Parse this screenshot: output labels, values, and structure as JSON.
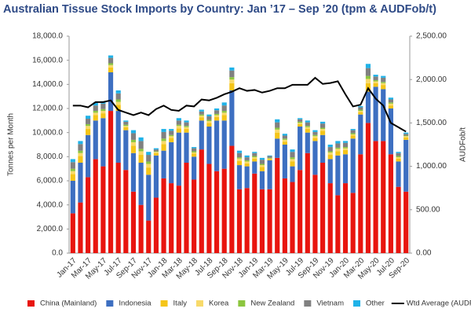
{
  "chart_data": {
    "type": "bar",
    "title": "Australian Tissue Stock Imports by Country: Jan ’17 – Sep ’20 (tpm & AUDFob/t)",
    "ylabel": "Tonnes per Month",
    "y2label": "AUDFob/t",
    "categories": [
      "Jan-17",
      null,
      "Mar-17",
      null,
      "May-17",
      null,
      "Jul-17",
      null,
      "Sep-17",
      null,
      "Nov-17",
      null,
      "Jan-18",
      null,
      "Mar-18",
      null,
      "May-18",
      null,
      "Jul-18",
      null,
      "Sep-18",
      null,
      "Nov-18",
      null,
      "Jan-19",
      null,
      "Mar-19",
      null,
      "May-19",
      null,
      "Jul-19",
      null,
      "Sep-19",
      null,
      "Nov-19",
      null,
      "Jan-20",
      null,
      "Mar-20",
      null,
      "May-20",
      null,
      "Jul-20",
      null,
      "Sep-20"
    ],
    "ylim": [
      0,
      18000
    ],
    "yticks": [
      {
        "value": 0,
        "label": "0.0"
      },
      {
        "value": 2000,
        "label": "2,000.0"
      },
      {
        "value": 4000,
        "label": "4,000.0"
      },
      {
        "value": 6000,
        "label": "6,000.0"
      },
      {
        "value": 8000,
        "label": "8,000.0"
      },
      {
        "value": 10000,
        "label": "10,000.0"
      },
      {
        "value": 12000,
        "label": "12,000.0"
      },
      {
        "value": 14000,
        "label": "14,000.0"
      },
      {
        "value": 16000,
        "label": "16,000.0"
      },
      {
        "value": 18000,
        "label": "18,000.0"
      }
    ],
    "y2lim": [
      0,
      2500
    ],
    "y2ticks": [
      {
        "value": 0,
        "label": "0.00"
      },
      {
        "value": 500,
        "label": "500.00"
      },
      {
        "value": 1000,
        "label": "1,000.00"
      },
      {
        "value": 1500,
        "label": "1,500.00"
      },
      {
        "value": 2000,
        "label": "2,000.00"
      },
      {
        "value": 2500,
        "label": "2,500.00"
      }
    ],
    "series": [
      {
        "name": "China (Mainland)",
        "color": "#e8150f",
        "values": [
          3300,
          4200,
          6300,
          7800,
          7200,
          11800,
          7500,
          6900,
          5100,
          4000,
          2700,
          4600,
          6200,
          5800,
          5600,
          7500,
          6100,
          8600,
          7400,
          6800,
          7000,
          8900,
          5300,
          5400,
          6600,
          5300,
          5300,
          7900,
          6200,
          5900,
          6900,
          8300,
          6500,
          7500,
          5800,
          4800,
          5800,
          5000,
          8200,
          10800,
          9300,
          9300,
          8200,
          5500,
          5100
        ]
      },
      {
        "name": "Indonesia",
        "color": "#3d6fc1",
        "values": [
          2700,
          3300,
          3500,
          3200,
          4000,
          3200,
          4300,
          3300,
          3200,
          3500,
          3800,
          3500,
          2300,
          3400,
          4400,
          2500,
          1900,
          2400,
          3100,
          4200,
          4000,
          4600,
          2000,
          1800,
          1000,
          1500,
          2400,
          1600,
          2800,
          1300,
          3600,
          1700,
          2800,
          2300,
          2000,
          3300,
          2400,
          4500,
          3300,
          2600,
          4500,
          4300,
          3800,
          2100,
          4300
        ]
      },
      {
        "name": "Italy",
        "color": "#f5c518",
        "values": [
          550,
          550,
          500,
          450,
          400,
          400,
          500,
          250,
          600,
          650,
          600,
          200,
          550,
          350,
          350,
          300,
          250,
          250,
          300,
          300,
          450,
          600,
          350,
          250,
          250,
          350,
          100,
          500,
          250,
          400,
          200,
          300,
          250,
          350,
          350,
          350,
          350,
          250,
          200,
          700,
          300,
          350,
          250,
          250,
          200
        ]
      },
      {
        "name": "Korea",
        "color": "#f8da6a",
        "values": [
          250,
          250,
          250,
          200,
          200,
          200,
          250,
          100,
          300,
          300,
          300,
          100,
          250,
          150,
          200,
          150,
          100,
          150,
          150,
          150,
          200,
          300,
          200,
          150,
          100,
          150,
          50,
          250,
          150,
          200,
          100,
          150,
          150,
          150,
          200,
          200,
          150,
          100,
          100,
          350,
          150,
          150,
          150,
          100,
          100
        ]
      },
      {
        "name": "New Zealand",
        "color": "#8cc63f",
        "values": [
          200,
          200,
          150,
          150,
          150,
          150,
          200,
          100,
          200,
          200,
          200,
          50,
          200,
          100,
          100,
          100,
          100,
          100,
          100,
          100,
          150,
          200,
          100,
          100,
          100,
          100,
          50,
          150,
          100,
          150,
          100,
          100,
          100,
          100,
          100,
          100,
          100,
          100,
          100,
          250,
          100,
          100,
          100,
          100,
          50
        ]
      },
      {
        "name": "Vietnam",
        "color": "#808080",
        "values": [
          550,
          550,
          450,
          450,
          450,
          450,
          500,
          250,
          550,
          650,
          550,
          150,
          550,
          350,
          350,
          300,
          250,
          250,
          300,
          300,
          450,
          550,
          350,
          250,
          250,
          350,
          150,
          450,
          250,
          450,
          200,
          300,
          250,
          350,
          350,
          350,
          350,
          250,
          200,
          650,
          300,
          350,
          250,
          250,
          150
        ]
      },
      {
        "name": "Other",
        "color": "#1fb2e8",
        "values": [
          250,
          250,
          250,
          250,
          200,
          200,
          250,
          100,
          250,
          300,
          250,
          100,
          250,
          150,
          200,
          150,
          100,
          150,
          150,
          150,
          250,
          250,
          200,
          150,
          100,
          150,
          50,
          250,
          150,
          200,
          100,
          150,
          150,
          150,
          200,
          200,
          150,
          100,
          100,
          350,
          150,
          150,
          150,
          100,
          100
        ]
      },
      {
        "name": "Wtd Average (AUDFob/t)",
        "color": "#000000",
        "type": "line",
        "axis": "y2",
        "values": [
          1700,
          1700,
          1680,
          1740,
          1740,
          1760,
          1650,
          1620,
          1590,
          1620,
          1590,
          1660,
          1700,
          1650,
          1640,
          1700,
          1690,
          1770,
          1760,
          1790,
          1830,
          1860,
          1900,
          1870,
          1880,
          1850,
          1870,
          1900,
          1900,
          1940,
          1940,
          1940,
          2020,
          1950,
          1960,
          1980,
          1830,
          1690,
          1710,
          1900,
          1780,
          1700,
          1500,
          1450,
          1400
        ]
      }
    ]
  }
}
